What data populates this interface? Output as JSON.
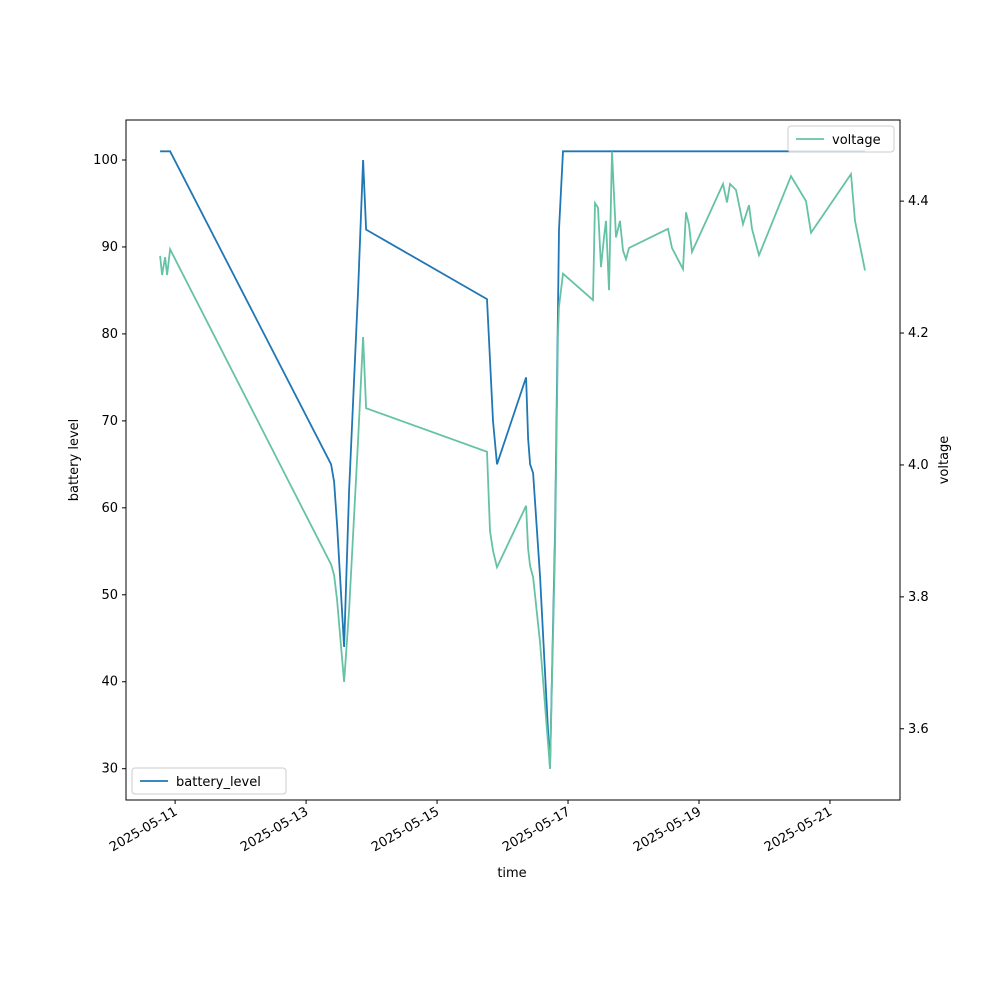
{
  "chart_data": {
    "type": "line",
    "x_label": "time",
    "y_label": "battery level",
    "y2_label": "voltage",
    "x": [
      "2025-05-10T18:30",
      "2025-05-10T19:14",
      "2025-05-10T20:20",
      "2025-05-10T21:04",
      "2025-05-10T22:10",
      "2025-05-13T09:10",
      "2025-05-13T10:16",
      "2025-05-13T11:22",
      "2025-05-13T13:55",
      "2025-05-13T15:45",
      "2025-05-13T19:03",
      "2025-05-13T20:53",
      "2025-05-13T21:59",
      "2025-05-15T18:19",
      "2025-05-15T19:25",
      "2025-05-15T20:31",
      "2025-05-15T21:59",
      "2025-05-16T08:37",
      "2025-05-16T09:21",
      "2025-05-16T10:05",
      "2025-05-16T11:11",
      "2025-05-16T13:45",
      "2025-05-16T17:24",
      "2025-05-16T19:14",
      "2025-05-16T20:20",
      "2025-05-16T20:42",
      "2025-05-16T22:10",
      "2025-05-17T09:10",
      "2025-05-17T09:54",
      "2025-05-17T11:00",
      "2025-05-17T12:06",
      "2025-05-17T13:12",
      "2025-05-17T13:56",
      "2025-05-17T15:02",
      "2025-05-17T16:07",
      "2025-05-17T17:35",
      "2025-05-17T19:03",
      "2025-05-17T20:09",
      "2025-05-17T21:15",
      "2025-05-17T22:21",
      "2025-05-18T12:39",
      "2025-05-18T14:07",
      "2025-05-18T18:08",
      "2025-05-18T19:14",
      "2025-05-18T20:20",
      "2025-05-18T21:26",
      "2025-05-19T08:48",
      "2025-05-19T10:16",
      "2025-05-19T11:22",
      "2025-05-19T13:34",
      "2025-05-19T16:08",
      "2025-05-19T18:19",
      "2025-05-19T19:25",
      "2025-05-19T21:59",
      "2025-05-20T09:43",
      "2025-05-20T15:12",
      "2025-05-20T17:02",
      "2025-05-21T07:42",
      "2025-05-21T09:10",
      "2025-05-21T12:50"
    ],
    "series": [
      {
        "name": "battery_level",
        "color": "#1f77b4",
        "axis": "y",
        "values": [
          101,
          101,
          101,
          101,
          101,
          65,
          63,
          58,
          44,
          62,
          85,
          100,
          92,
          84,
          77,
          70,
          65,
          75,
          68,
          65,
          64,
          52,
          30,
          57,
          83,
          92,
          101,
          101,
          101,
          101,
          101,
          101,
          101,
          101,
          101,
          101,
          101,
          101,
          101,
          101,
          101,
          101,
          101,
          101,
          101,
          101,
          101,
          101,
          101,
          101,
          101,
          101,
          101,
          101,
          101,
          101,
          101,
          101,
          101,
          101
        ]
      },
      {
        "name": "voltage",
        "color": "#66c2a5",
        "axis": "y2",
        "values": [
          4.317,
          4.288,
          4.315,
          4.288,
          4.327,
          3.849,
          3.833,
          3.795,
          3.671,
          3.78,
          4.038,
          4.194,
          4.086,
          4.02,
          3.9,
          3.87,
          3.845,
          3.938,
          3.873,
          3.847,
          3.83,
          3.73,
          3.54,
          3.87,
          4.2,
          4.24,
          4.29,
          4.25,
          4.397,
          4.39,
          4.3,
          4.345,
          4.37,
          4.265,
          4.475,
          4.345,
          4.37,
          4.325,
          4.312,
          4.329,
          4.358,
          4.329,
          4.297,
          4.383,
          4.364,
          4.323,
          4.426,
          4.398,
          4.426,
          4.417,
          4.365,
          4.394,
          4.358,
          4.318,
          4.438,
          4.4,
          4.352,
          4.441,
          4.37,
          4.295
        ]
      }
    ],
    "xlim": [
      "2025-05-10T06:00",
      "2025-05-22T01:40"
    ],
    "xticks": [
      "2025-05-11",
      "2025-05-13",
      "2025-05-15",
      "2025-05-17",
      "2025-05-19",
      "2025-05-21"
    ],
    "ylim": [
      26.4,
      104.6
    ],
    "yticks": [
      30,
      40,
      50,
      60,
      70,
      80,
      90,
      100
    ],
    "y2lim": [
      3.492,
      4.523
    ],
    "y2ticks": [
      3.6,
      3.8,
      {
        "value": 4,
        "label": "4.0"
      },
      4.2,
      4.4
    ],
    "legend": {
      "y": "lower left",
      "y2": "upper right"
    },
    "grid": false
  }
}
